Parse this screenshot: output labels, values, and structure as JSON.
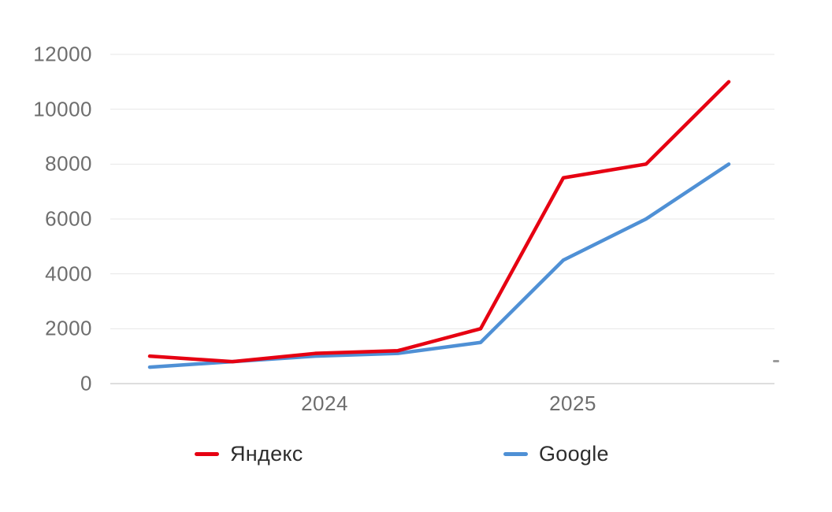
{
  "chart_data": {
    "type": "line",
    "title": "",
    "xlabel": "",
    "ylabel": "",
    "x": [
      1,
      2,
      3,
      4,
      5,
      6,
      7,
      8
    ],
    "series": [
      {
        "name": "Яндекс",
        "color": "#e60012",
        "values": [
          1000,
          800,
          1100,
          1200,
          2000,
          7500,
          8000,
          11000
        ]
      },
      {
        "name": "Google",
        "color": "#4f90d5",
        "values": [
          600,
          800,
          1000,
          1100,
          1500,
          4500,
          6000,
          8000
        ]
      }
    ],
    "y_ticks": [
      0,
      2000,
      4000,
      6000,
      8000,
      10000,
      12000
    ],
    "ylim": [
      0,
      12000
    ],
    "x_tick_labels": [
      {
        "label": "2024",
        "point_index": 2
      },
      {
        "label": "2025",
        "point_index": 5
      }
    ],
    "grid": true,
    "legend_position": "bottom"
  },
  "colors": {
    "background": "#ffffff",
    "grid": "#e7e7e7",
    "zero_line": "#d4d4d4",
    "axis_text": "#6e6e6e",
    "legend_text": "#2d2d2d",
    "artifact_dash": "#9b9b9b"
  }
}
